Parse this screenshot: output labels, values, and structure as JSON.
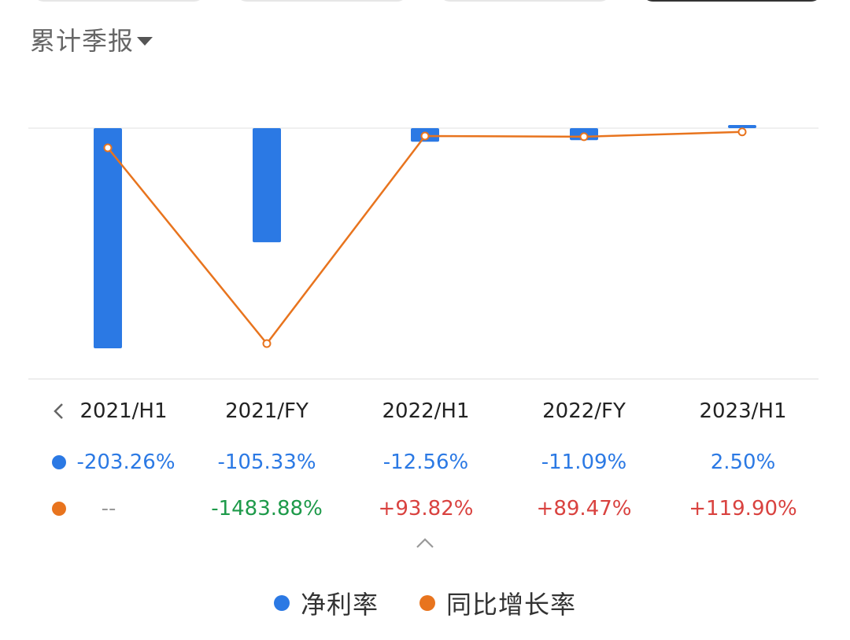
{
  "header": {
    "period_type": "累计季报"
  },
  "colors": {
    "net_margin": "#2b79e4",
    "yoy_growth": "#e8741e",
    "positive": "#d9423f",
    "negative": "#1e9a4a"
  },
  "chart_data": {
    "type": "bar",
    "categories": [
      "2021/H1",
      "2021/FY",
      "2022/H1",
      "2022/FY",
      "2023/H1"
    ],
    "series": [
      {
        "name": "净利率",
        "type": "bar",
        "values": [
          -203.26,
          -105.33,
          -12.56,
          -11.09,
          2.5
        ]
      },
      {
        "name": "同比增长率",
        "type": "line",
        "values": [
          null,
          -1483.88,
          93.82,
          89.47,
          119.9
        ]
      }
    ],
    "legend_position": "bottom",
    "grid": false
  },
  "table": {
    "net_margin_labels": [
      "-203.26%",
      "-105.33%",
      "-12.56%",
      "-11.09%",
      "2.50%"
    ],
    "yoy_labels": [
      "--",
      "-1483.88%",
      "+93.82%",
      "+89.47%",
      "+119.90%"
    ]
  },
  "icons": {
    "prev": "chevron-left-icon",
    "toggle": "chevron-up-icon",
    "dropdown": "caret-down-icon"
  }
}
